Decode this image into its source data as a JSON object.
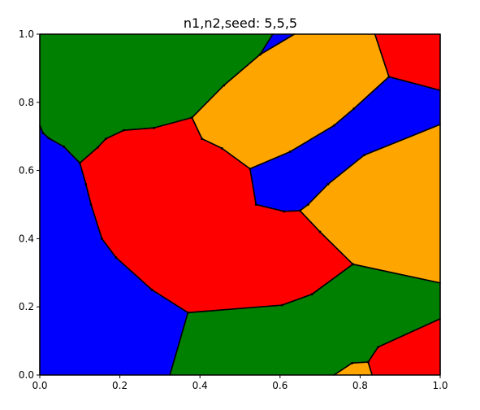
{
  "chart_data": {
    "type": "polygon-map",
    "title": "n1,n2,seed: 5,5,5",
    "xlabel": "",
    "ylabel": "",
    "xlim": [
      0.0,
      1.0
    ],
    "ylim": [
      0.0,
      1.0
    ],
    "xticks": [
      0.0,
      0.2,
      0.4,
      0.6,
      0.8,
      1.0
    ],
    "yticks": [
      0.0,
      0.2,
      0.4,
      0.6,
      0.8,
      1.0
    ],
    "tick_labels": {
      "x": [
        "0.0",
        "0.2",
        "0.4",
        "0.6",
        "0.8",
        "1.0"
      ],
      "y": [
        "0.0",
        "0.2",
        "0.4",
        "0.6",
        "0.8",
        "1.0"
      ]
    },
    "grid": false,
    "legend": "none",
    "edge_color": "#000000",
    "regions": [
      {
        "color": "#008000",
        "points": [
          [
            0,
            1
          ],
          [
            0.582,
            1
          ],
          [
            0.55,
            0.94
          ],
          [
            0.46,
            0.85
          ],
          [
            0.38,
            0.755
          ],
          [
            0.285,
            0.725
          ],
          [
            0.21,
            0.718
          ],
          [
            0.165,
            0.693
          ],
          [
            0.145,
            0.668
          ],
          [
            0.1,
            0.622
          ],
          [
            0.06,
            0.67
          ],
          [
            0.022,
            0.695
          ],
          [
            0.008,
            0.71
          ],
          [
            0,
            0.733
          ]
        ]
      },
      {
        "color": "#0000ff",
        "points": [
          [
            0.582,
            1
          ],
          [
            0.636,
            1
          ],
          [
            0.55,
            0.94
          ]
        ]
      },
      {
        "color": "#ffa500",
        "points": [
          [
            0.636,
            1
          ],
          [
            0.837,
            1
          ],
          [
            0.872,
            0.875
          ],
          [
            0.785,
            0.782
          ],
          [
            0.735,
            0.732
          ],
          [
            0.625,
            0.655
          ],
          [
            0.525,
            0.605
          ],
          [
            0.455,
            0.665
          ],
          [
            0.405,
            0.693
          ],
          [
            0.38,
            0.755
          ],
          [
            0.46,
            0.85
          ],
          [
            0.55,
            0.94
          ]
        ]
      },
      {
        "color": "#ff0000",
        "points": [
          [
            0.837,
            1
          ],
          [
            1,
            1
          ],
          [
            1,
            0.835
          ],
          [
            0.872,
            0.875
          ]
        ]
      },
      {
        "color": "#0000ff",
        "points": [
          [
            0.872,
            0.875
          ],
          [
            1,
            0.835
          ],
          [
            1,
            0.735
          ],
          [
            0.81,
            0.645
          ],
          [
            0.72,
            0.56
          ],
          [
            0.67,
            0.5
          ],
          [
            0.65,
            0.482
          ],
          [
            0.61,
            0.48
          ],
          [
            0.54,
            0.5
          ],
          [
            0.525,
            0.605
          ],
          [
            0.625,
            0.655
          ],
          [
            0.735,
            0.732
          ],
          [
            0.785,
            0.782
          ]
        ]
      },
      {
        "color": "#ff0000",
        "points": [
          [
            0.1,
            0.622
          ],
          [
            0.145,
            0.668
          ],
          [
            0.165,
            0.693
          ],
          [
            0.21,
            0.718
          ],
          [
            0.285,
            0.725
          ],
          [
            0.38,
            0.755
          ],
          [
            0.405,
            0.693
          ],
          [
            0.455,
            0.665
          ],
          [
            0.525,
            0.605
          ],
          [
            0.54,
            0.5
          ],
          [
            0.61,
            0.48
          ],
          [
            0.65,
            0.482
          ],
          [
            0.7,
            0.42
          ],
          [
            0.782,
            0.325
          ],
          [
            0.68,
            0.237
          ],
          [
            0.605,
            0.205
          ],
          [
            0.37,
            0.183
          ],
          [
            0.28,
            0.25
          ],
          [
            0.19,
            0.345
          ],
          [
            0.155,
            0.4
          ],
          [
            0.128,
            0.5
          ],
          [
            0.115,
            0.56
          ]
        ]
      },
      {
        "color": "#0000ff",
        "points": [
          [
            0,
            0.733
          ],
          [
            0.008,
            0.71
          ],
          [
            0.022,
            0.695
          ],
          [
            0.06,
            0.67
          ],
          [
            0.1,
            0.622
          ],
          [
            0.115,
            0.56
          ],
          [
            0.128,
            0.5
          ],
          [
            0.155,
            0.4
          ],
          [
            0.19,
            0.345
          ],
          [
            0.28,
            0.25
          ],
          [
            0.37,
            0.183
          ],
          [
            0.325,
            0
          ],
          [
            0,
            0
          ]
        ]
      },
      {
        "color": "#ffa500",
        "points": [
          [
            0.65,
            0.482
          ],
          [
            0.67,
            0.5
          ],
          [
            0.72,
            0.56
          ],
          [
            0.81,
            0.645
          ],
          [
            1,
            0.735
          ],
          [
            1,
            0.27
          ],
          [
            0.782,
            0.325
          ],
          [
            0.7,
            0.42
          ]
        ]
      },
      {
        "color": "#008000",
        "points": [
          [
            0.37,
            0.183
          ],
          [
            0.605,
            0.205
          ],
          [
            0.68,
            0.237
          ],
          [
            0.782,
            0.325
          ],
          [
            1,
            0.27
          ],
          [
            1,
            0.165
          ],
          [
            0.845,
            0.082
          ],
          [
            0.82,
            0.038
          ],
          [
            0.78,
            0.035
          ],
          [
            0.735,
            0
          ],
          [
            0.325,
            0
          ]
        ]
      },
      {
        "color": "#ffa500",
        "points": [
          [
            0.735,
            0
          ],
          [
            0.78,
            0.035
          ],
          [
            0.82,
            0.038
          ],
          [
            0.83,
            0
          ]
        ]
      },
      {
        "color": "#ff0000",
        "points": [
          [
            0.83,
            0
          ],
          [
            0.82,
            0.038
          ],
          [
            0.845,
            0.082
          ],
          [
            1,
            0.165
          ],
          [
            1,
            0
          ]
        ]
      }
    ]
  }
}
